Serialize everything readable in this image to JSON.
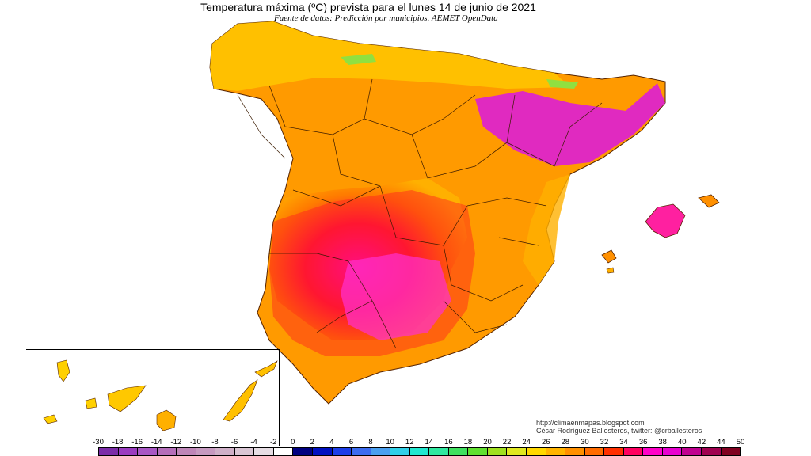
{
  "header": {
    "title": "Temperatura máxima (ºC) prevista para el lunes 14 de junio de 2021",
    "subtitle": "Fuente de datos: Predicción por municipios. AEMET OpenData"
  },
  "credit": {
    "url": "http://climaenmapas.blogspot.com",
    "author": "César Rodríguez Ballesteros, twitter: @crballesteros"
  },
  "legend": {
    "labels": [
      "-30",
      "-18",
      "-16",
      "-14",
      "-12",
      "-10",
      "-8",
      "-6",
      "-4",
      "-2",
      "0",
      "2",
      "4",
      "6",
      "8",
      "10",
      "12",
      "14",
      "16",
      "18",
      "20",
      "22",
      "24",
      "26",
      "28",
      "30",
      "32",
      "34",
      "36",
      "38",
      "40",
      "42",
      "44",
      "50"
    ],
    "colors": [
      "#7b2ca8",
      "#9a3cc0",
      "#a857c4",
      "#b46eba",
      "#be86b8",
      "#c69ac0",
      "#cfb0c8",
      "#d9c6d4",
      "#e6dde4",
      "#ffffff",
      "#000080",
      "#0010c0",
      "#1c3ee8",
      "#3c6cf0",
      "#4aa0f0",
      "#30d0e8",
      "#20e8d0",
      "#30e8a0",
      "#40e060",
      "#60e030",
      "#a0e020",
      "#e0e820",
      "#ffd800",
      "#ffb400",
      "#ff9000",
      "#ff6c00",
      "#ff3000",
      "#ff0060",
      "#ff00c8",
      "#e800d0",
      "#c00090",
      "#a00050",
      "#800020"
    ]
  }
}
